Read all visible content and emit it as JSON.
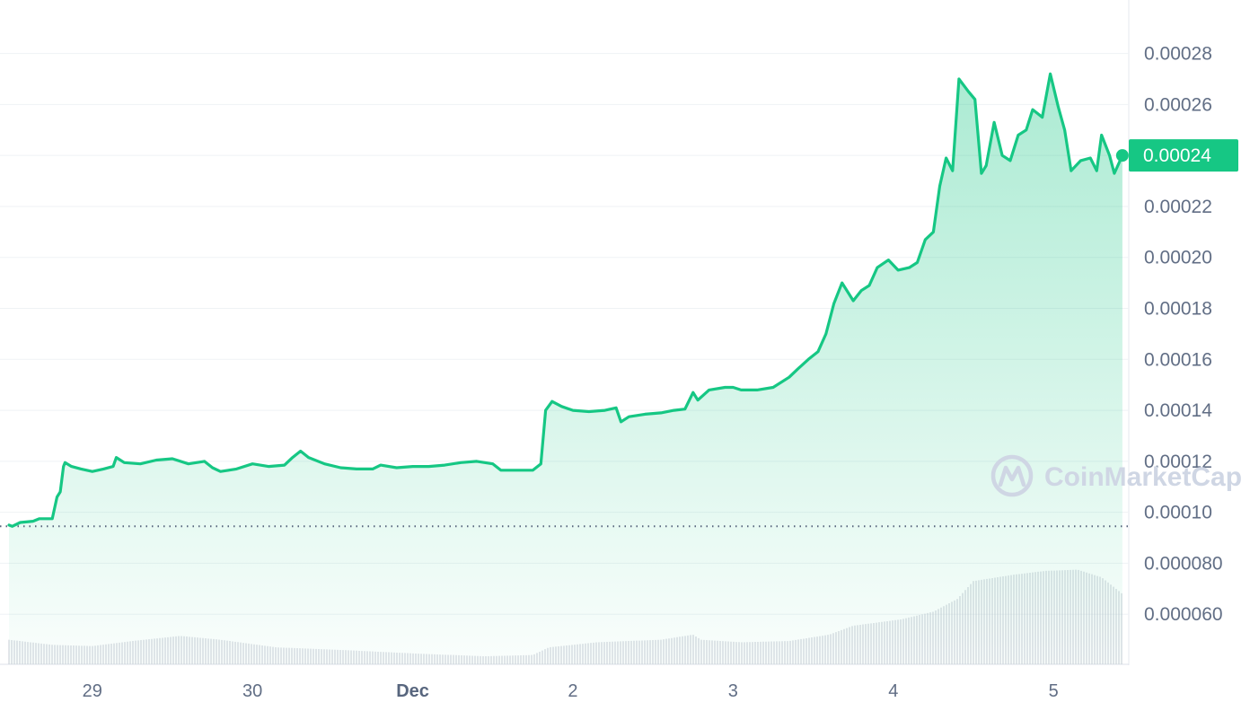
{
  "chart_data": {
    "type": "area",
    "title": "",
    "xlabel": "",
    "ylabel": "",
    "ylim": [
      4e-05,
      0.000301
    ],
    "x_ticks": [
      {
        "label": "29",
        "bold": false,
        "t": 0.25
      },
      {
        "label": "30",
        "bold": false,
        "t": 1.25
      },
      {
        "label": "Dec",
        "bold": true,
        "t": 2.25
      },
      {
        "label": "2",
        "bold": false,
        "t": 3.25
      },
      {
        "label": "3",
        "bold": false,
        "t": 4.25
      },
      {
        "label": "4",
        "bold": false,
        "t": 5.25
      },
      {
        "label": "5",
        "bold": false,
        "t": 6.25
      }
    ],
    "y_ticks": [
      {
        "label": "0.00028",
        "v": 0.00028
      },
      {
        "label": "0.00026",
        "v": 0.00026
      },
      {
        "label": "0.00024",
        "v": 0.00024
      },
      {
        "label": "0.00022",
        "v": 0.00022
      },
      {
        "label": "0.00020",
        "v": 0.0002
      },
      {
        "label": "0.00018",
        "v": 0.00018
      },
      {
        "label": "0.00016",
        "v": 0.00016
      },
      {
        "label": "0.00014",
        "v": 0.00014
      },
      {
        "label": "0.00012",
        "v": 0.00012
      },
      {
        "label": "0.00010",
        "v": 0.0001
      },
      {
        "label": "0.000080",
        "v": 8e-05
      },
      {
        "label": "0.000060",
        "v": 6e-05
      }
    ],
    "current_price": {
      "label": "0.00024",
      "value": 0.00024
    },
    "reference_price": 9.45e-05,
    "grid": true,
    "line_color": "#16c784",
    "label_color": "#16c784",
    "volume_color": "#c8ccd6",
    "series": [
      {
        "kind": "price",
        "points": [
          [
            -0.27,
            9.5e-05
          ],
          [
            -0.25,
            9.45e-05
          ],
          [
            -0.2,
            9.6e-05
          ],
          [
            -0.12,
            9.65e-05
          ],
          [
            -0.08,
            9.75e-05
          ],
          [
            0.0,
            9.75e-05
          ],
          [
            0.03,
            0.000106
          ],
          [
            0.05,
            0.000108
          ],
          [
            0.07,
            0.000118
          ],
          [
            0.08,
            0.0001195
          ],
          [
            0.12,
            0.000118
          ],
          [
            0.18,
            0.000117
          ],
          [
            0.25,
            0.000116
          ],
          [
            0.32,
            0.000117
          ],
          [
            0.38,
            0.000118
          ],
          [
            0.4,
            0.0001215
          ],
          [
            0.45,
            0.0001195
          ],
          [
            0.55,
            0.000119
          ],
          [
            0.65,
            0.0001205
          ],
          [
            0.75,
            0.000121
          ],
          [
            0.85,
            0.000119
          ],
          [
            0.95,
            0.00012
          ],
          [
            1.0,
            0.0001175
          ],
          [
            1.05,
            0.000116
          ],
          [
            1.15,
            0.000117
          ],
          [
            1.25,
            0.000119
          ],
          [
            1.35,
            0.000118
          ],
          [
            1.45,
            0.0001185
          ],
          [
            1.5,
            0.0001215
          ],
          [
            1.55,
            0.000124
          ],
          [
            1.6,
            0.0001215
          ],
          [
            1.7,
            0.000119
          ],
          [
            1.8,
            0.0001175
          ],
          [
            1.9,
            0.000117
          ],
          [
            2.0,
            0.000117
          ],
          [
            2.05,
            0.0001185
          ],
          [
            2.15,
            0.0001175
          ],
          [
            2.25,
            0.000118
          ],
          [
            2.35,
            0.000118
          ],
          [
            2.45,
            0.0001185
          ],
          [
            2.55,
            0.0001195
          ],
          [
            2.65,
            0.00012
          ],
          [
            2.75,
            0.000119
          ],
          [
            2.8,
            0.0001165
          ],
          [
            2.9,
            0.0001165
          ],
          [
            3.0,
            0.0001165
          ],
          [
            3.05,
            0.000119
          ],
          [
            3.08,
            0.00014
          ],
          [
            3.12,
            0.0001435
          ],
          [
            3.18,
            0.0001415
          ],
          [
            3.25,
            0.00014
          ],
          [
            3.35,
            0.0001395
          ],
          [
            3.45,
            0.00014
          ],
          [
            3.52,
            0.000141
          ],
          [
            3.55,
            0.0001355
          ],
          [
            3.6,
            0.0001375
          ],
          [
            3.7,
            0.0001385
          ],
          [
            3.8,
            0.000139
          ],
          [
            3.88,
            0.00014
          ],
          [
            3.95,
            0.0001405
          ],
          [
            4.0,
            0.000147
          ],
          [
            4.03,
            0.000144
          ],
          [
            4.1,
            0.000148
          ],
          [
            4.2,
            0.000149
          ],
          [
            4.25,
            0.000149
          ],
          [
            4.3,
            0.000148
          ],
          [
            4.4,
            0.000148
          ],
          [
            4.5,
            0.000149
          ],
          [
            4.6,
            0.000153
          ],
          [
            4.65,
            0.000156
          ],
          [
            4.72,
            0.00016
          ],
          [
            4.78,
            0.000163
          ],
          [
            4.83,
            0.00017
          ],
          [
            4.88,
            0.000182
          ],
          [
            4.93,
            0.00019
          ],
          [
            5.0,
            0.000183
          ],
          [
            5.05,
            0.000187
          ],
          [
            5.1,
            0.000189
          ],
          [
            5.15,
            0.000196
          ],
          [
            5.22,
            0.000199
          ],
          [
            5.28,
            0.000195
          ],
          [
            5.35,
            0.000196
          ],
          [
            5.4,
            0.000198
          ],
          [
            5.45,
            0.000207
          ],
          [
            5.5,
            0.00021
          ],
          [
            5.54,
            0.000228
          ],
          [
            5.58,
            0.000239
          ],
          [
            5.62,
            0.000234
          ],
          [
            5.66,
            0.00027
          ],
          [
            5.72,
            0.000265
          ],
          [
            5.76,
            0.000262
          ],
          [
            5.8,
            0.000233
          ],
          [
            5.83,
            0.000236
          ],
          [
            5.88,
            0.000253
          ],
          [
            5.93,
            0.00024
          ],
          [
            5.98,
            0.000238
          ],
          [
            6.03,
            0.000248
          ],
          [
            6.08,
            0.00025
          ],
          [
            6.12,
            0.000258
          ],
          [
            6.18,
            0.000255
          ],
          [
            6.23,
            0.000272
          ],
          [
            6.28,
            0.000259
          ],
          [
            6.32,
            0.00025
          ],
          [
            6.36,
            0.000234
          ],
          [
            6.42,
            0.000238
          ],
          [
            6.48,
            0.000239
          ],
          [
            6.52,
            0.000234
          ],
          [
            6.55,
            0.000248
          ],
          [
            6.6,
            0.00024
          ],
          [
            6.63,
            0.000233
          ],
          [
            6.68,
            0.00024
          ]
        ]
      },
      {
        "kind": "volume",
        "points": [
          [
            -0.27,
            5e-05
          ],
          [
            0.0,
            4.8e-05
          ],
          [
            0.25,
            4.75e-05
          ],
          [
            0.5,
            4.95e-05
          ],
          [
            0.8,
            5.15e-05
          ],
          [
            1.05,
            5e-05
          ],
          [
            1.4,
            4.7e-05
          ],
          [
            1.8,
            4.6e-05
          ],
          [
            2.3,
            4.45e-05
          ],
          [
            2.7,
            4.35e-05
          ],
          [
            3.0,
            4.4e-05
          ],
          [
            3.1,
            4.7e-05
          ],
          [
            3.4,
            4.9e-05
          ],
          [
            3.8,
            5e-05
          ],
          [
            4.0,
            5.2e-05
          ],
          [
            4.05,
            5e-05
          ],
          [
            4.3,
            4.9e-05
          ],
          [
            4.6,
            4.95e-05
          ],
          [
            4.85,
            5.2e-05
          ],
          [
            5.0,
            5.55e-05
          ],
          [
            5.3,
            5.8e-05
          ],
          [
            5.5,
            6.1e-05
          ],
          [
            5.65,
            6.6e-05
          ],
          [
            5.75,
            7.3e-05
          ],
          [
            6.0,
            7.55e-05
          ],
          [
            6.2,
            7.7e-05
          ],
          [
            6.4,
            7.75e-05
          ],
          [
            6.55,
            7.45e-05
          ],
          [
            6.68,
            6.8e-05
          ]
        ]
      }
    ]
  },
  "watermark": {
    "text": "CoinMarketCap"
  }
}
